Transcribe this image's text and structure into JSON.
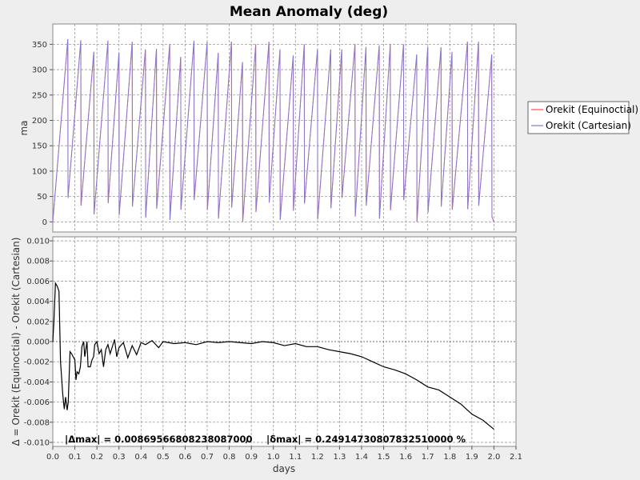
{
  "chart_data": [
    {
      "type": "line",
      "title": "Mean Anomaly (deg)",
      "xlabel": "",
      "ylabel": "ma",
      "xlim": [
        0.0,
        2.1
      ],
      "ylim": [
        -20,
        390
      ],
      "yticks": [
        0,
        50,
        100,
        150,
        200,
        250,
        300,
        350
      ],
      "grid": true,
      "legend_position": "right",
      "series": [
        {
          "name": "Orekit (Equinoctial)",
          "color": "#ff5555",
          "x": [
            0.0,
            0.068,
            0.069,
            0.127,
            0.128,
            0.186,
            0.187,
            0.25,
            0.251,
            0.3,
            0.301,
            0.36,
            0.361,
            0.42,
            0.421,
            0.47,
            0.471,
            0.53,
            0.531,
            0.58,
            0.581,
            0.64,
            0.641,
            0.7,
            0.701,
            0.75,
            0.751,
            0.81,
            0.811,
            0.86,
            0.861,
            0.92,
            0.921,
            0.98,
            0.981,
            1.03,
            1.031,
            1.09,
            1.091,
            1.14,
            1.141,
            1.2,
            1.201,
            1.26,
            1.261,
            1.31,
            1.311,
            1.37,
            1.371,
            1.42,
            1.421,
            1.48,
            1.481,
            1.53,
            1.531,
            1.59,
            1.591,
            1.65,
            1.651,
            1.7,
            1.701,
            1.76,
            1.761,
            1.81,
            1.811,
            1.88,
            1.881,
            1.93,
            1.931,
            1.99,
            1.991,
            2.0
          ],
          "y": [
            0,
            360,
            47,
            358,
            32,
            335,
            15,
            357,
            37,
            333,
            13,
            355,
            30,
            340,
            8,
            341,
            26,
            350,
            4,
            325,
            24,
            357,
            43,
            355,
            24,
            333,
            6,
            355,
            28,
            315,
            0,
            350,
            19,
            355,
            38,
            340,
            4,
            328,
            22,
            350,
            36,
            340,
            5,
            340,
            27,
            340,
            47,
            350,
            10,
            345,
            32,
            348,
            6,
            350,
            23,
            350,
            43,
            330,
            0,
            345,
            18,
            344,
            30,
            335,
            24,
            355,
            25,
            355,
            32,
            330,
            10,
            0
          ]
        },
        {
          "name": "Orekit (Cartesian)",
          "color": "#8877cc",
          "x": [
            0.0,
            0.068,
            0.069,
            0.127,
            0.128,
            0.186,
            0.187,
            0.25,
            0.251,
            0.3,
            0.301,
            0.36,
            0.361,
            0.42,
            0.421,
            0.47,
            0.471,
            0.53,
            0.531,
            0.58,
            0.581,
            0.64,
            0.641,
            0.7,
            0.701,
            0.75,
            0.751,
            0.81,
            0.811,
            0.86,
            0.861,
            0.92,
            0.921,
            0.98,
            0.981,
            1.03,
            1.031,
            1.09,
            1.091,
            1.14,
            1.141,
            1.2,
            1.201,
            1.26,
            1.261,
            1.31,
            1.311,
            1.37,
            1.371,
            1.42,
            1.421,
            1.48,
            1.481,
            1.53,
            1.531,
            1.59,
            1.591,
            1.65,
            1.651,
            1.7,
            1.701,
            1.76,
            1.761,
            1.81,
            1.811,
            1.88,
            1.881,
            1.93,
            1.931,
            1.99,
            1.991,
            2.0
          ],
          "y": [
            0,
            360,
            47,
            358,
            32,
            335,
            15,
            357,
            37,
            333,
            13,
            355,
            30,
            340,
            8,
            341,
            26,
            350,
            4,
            325,
            24,
            357,
            43,
            355,
            24,
            333,
            6,
            355,
            28,
            315,
            0,
            350,
            19,
            355,
            38,
            340,
            4,
            328,
            22,
            350,
            36,
            340,
            5,
            340,
            27,
            340,
            47,
            350,
            10,
            345,
            32,
            348,
            6,
            350,
            23,
            350,
            43,
            330,
            0,
            345,
            18,
            344,
            30,
            335,
            24,
            355,
            25,
            355,
            32,
            330,
            10,
            0
          ]
        }
      ]
    },
    {
      "type": "line",
      "title": "",
      "xlabel": "days",
      "ylabel": "Δ = Orekit (Equinoctial) - Orekit (Cartesian)",
      "xlim": [
        0.0,
        2.1
      ],
      "ylim": [
        -0.0104,
        0.0104
      ],
      "xticks": [
        "0.0",
        "0.1",
        "0.2",
        "0.3",
        "0.4",
        "0.5",
        "0.6",
        "0.7",
        "0.8",
        "0.9",
        "1.0",
        "1.1",
        "1.2",
        "1.3",
        "1.4",
        "1.5",
        "1.6",
        "1.7",
        "1.8",
        "1.9",
        "2.0",
        "2.1"
      ],
      "yticks": [
        "0.010",
        "0.008",
        "0.006",
        "0.004",
        "0.002",
        "0.000",
        "-0.002",
        "-0.004",
        "-0.006",
        "-0.008",
        "-0.010"
      ],
      "grid": true,
      "zero_line": true,
      "annotation": {
        "delta_max": "|Δmax| = 0.00869566808238087000",
        "separator": "/",
        "rel_max": "|δmax| = 0.24914730807832510000 %"
      },
      "series": [
        {
          "name": "",
          "color": "#000000",
          "x": [
            0.0,
            0.005,
            0.012,
            0.02,
            0.028,
            0.035,
            0.045,
            0.052,
            0.058,
            0.065,
            0.07,
            0.078,
            0.085,
            0.092,
            0.1,
            0.105,
            0.11,
            0.118,
            0.125,
            0.132,
            0.14,
            0.145,
            0.155,
            0.16,
            0.17,
            0.178,
            0.185,
            0.19,
            0.2,
            0.21,
            0.22,
            0.23,
            0.24,
            0.25,
            0.26,
            0.27,
            0.28,
            0.29,
            0.3,
            0.32,
            0.34,
            0.36,
            0.38,
            0.4,
            0.42,
            0.45,
            0.48,
            0.5,
            0.55,
            0.6,
            0.65,
            0.7,
            0.75,
            0.8,
            0.85,
            0.9,
            0.95,
            1.0,
            1.05,
            1.1,
            1.15,
            1.2,
            1.25,
            1.3,
            1.35,
            1.4,
            1.45,
            1.5,
            1.55,
            1.6,
            1.65,
            1.7,
            1.75,
            1.8,
            1.85,
            1.9,
            1.95,
            2.0
          ],
          "y": [
            0.0,
            0.002,
            0.0058,
            0.0055,
            0.005,
            -0.002,
            -0.0052,
            -0.0067,
            -0.0055,
            -0.0068,
            -0.006,
            -0.001,
            -0.0012,
            -0.0015,
            -0.0018,
            -0.0038,
            -0.003,
            -0.0032,
            -0.0025,
            -0.0005,
            0.0,
            -0.0015,
            0.0,
            -0.0025,
            -0.0025,
            -0.0018,
            -0.0015,
            -0.0003,
            0.0,
            -0.0012,
            -0.0008,
            -0.0025,
            -0.0008,
            -0.0003,
            -0.0012,
            -0.0005,
            0.0002,
            -0.0015,
            -0.0006,
            -0.0001,
            -0.0016,
            -0.0004,
            -0.0013,
            -0.0001,
            -0.0003,
            0.0001,
            -0.0006,
            0.0,
            -0.0002,
            -0.0001,
            -0.0003,
            0.0,
            -0.0001,
            0.0,
            -0.0001,
            -0.0002,
            0.0,
            -0.0001,
            -0.0004,
            -0.0002,
            -0.0005,
            -0.0005,
            -0.0008,
            -0.001,
            -0.0012,
            -0.0015,
            -0.002,
            -0.0025,
            -0.0028,
            -0.0032,
            -0.0038,
            -0.0045,
            -0.0048,
            -0.0055,
            -0.0062,
            -0.0072,
            -0.0078,
            -0.0087
          ]
        }
      ]
    }
  ]
}
